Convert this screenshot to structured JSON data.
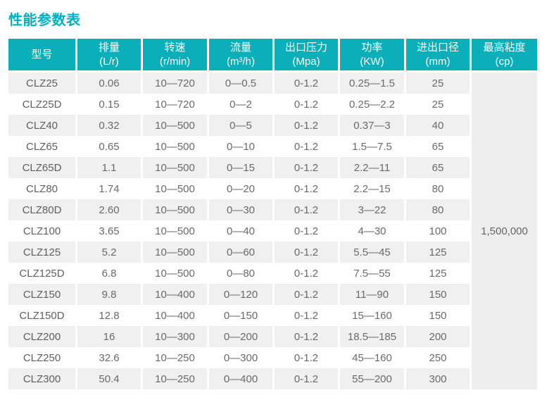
{
  "page_title": "性能参数表",
  "table": {
    "columns": [
      {
        "name": "型号",
        "unit": ""
      },
      {
        "name": "排量",
        "unit": "(L/r)"
      },
      {
        "name": "转速",
        "unit": "(r/min)"
      },
      {
        "name": "流量",
        "unit": "(m³/h)"
      },
      {
        "name": "出口压力",
        "unit": "(Mpa)"
      },
      {
        "name": "功率",
        "unit": "(KW)"
      },
      {
        "name": "进出口径",
        "unit": "(mm)"
      },
      {
        "name": "最高粘度",
        "unit": "(cp)"
      }
    ],
    "max_viscosity": "1,500,000",
    "rows": [
      [
        "CLZ25",
        "0.06",
        "10—720",
        "0—0.5",
        "0-1.2",
        "0.25—1.5",
        "25"
      ],
      [
        "CLZ25D",
        "0.15",
        "10—720",
        "0—2",
        "0-1.2",
        "0.25—2.2",
        "25"
      ],
      [
        "CLZ40",
        "0.32",
        "10—500",
        "0—5",
        "0-1.2",
        "0.37—3",
        "40"
      ],
      [
        "CLZ65",
        "0.65",
        "10—500",
        "0—10",
        "0-1.2",
        "1.5—7.5",
        "65"
      ],
      [
        "CLZ65D",
        "1.1",
        "10—500",
        "0—15",
        "0-1.2",
        "2.2—11",
        "65"
      ],
      [
        "CLZ80",
        "1.74",
        "10—500",
        "0—20",
        "0-1.2",
        "2.2—15",
        "80"
      ],
      [
        "CLZ80D",
        "2.60",
        "10—500",
        "0—30",
        "0-1.2",
        "3—22",
        "80"
      ],
      [
        "CLZ100",
        "3.65",
        "10—500",
        "0—40",
        "0-1.2",
        "4—30",
        "100"
      ],
      [
        "CLZ125",
        "5.2",
        "10—500",
        "0—60",
        "0-1.2",
        "5.5—45",
        "125"
      ],
      [
        "CLZ125D",
        "6.8",
        "10—500",
        "0—80",
        "0-1.2",
        "7.5—55",
        "125"
      ],
      [
        "CLZ150",
        "9.8",
        "10—400",
        "0—120",
        "0-1.2",
        "11—90",
        "150"
      ],
      [
        "CLZ150D",
        "12.8",
        "10—400",
        "0—150",
        "0-1.2",
        "15—160",
        "150"
      ],
      [
        "CLZ200",
        "16",
        "10—300",
        "0—200",
        "0-1.2",
        "18.5—185",
        "200"
      ],
      [
        "CLZ250",
        "32.6",
        "10—250",
        "0—300",
        "0-1.2",
        "45—160",
        "250"
      ],
      [
        "CLZ300",
        "50.4",
        "10—250",
        "0—400",
        "0-1.2",
        "55—200",
        "300"
      ]
    ],
    "colors": {
      "header_bg": "#0bafb9",
      "header_text": "#ffffff",
      "row_alt_bg": "#f0f0f0",
      "merged_cell_bg": "#ededee",
      "title_color": "#00b0c2",
      "data_text": "#6a6a6a"
    }
  }
}
